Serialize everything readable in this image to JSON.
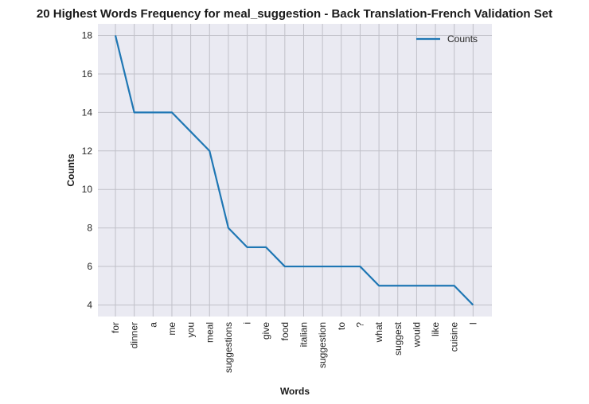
{
  "chart_data": {
    "type": "line",
    "title": "20 Highest Words Frequency for meal_suggestion - Back Translation-French Validation Set",
    "xlabel": "Words",
    "ylabel": "Counts",
    "categories": [
      "for",
      "dinner",
      "a",
      "me",
      "you",
      "meal",
      "suggestions",
      "i",
      "give",
      "food",
      "italian",
      "suggestion",
      "to",
      "?",
      "what",
      "suggest",
      "would",
      "like",
      "cuisine",
      "I"
    ],
    "series": [
      {
        "name": "Counts",
        "values": [
          18,
          14,
          14,
          14,
          13,
          12,
          8,
          7,
          7,
          6,
          6,
          6,
          6,
          6,
          5,
          5,
          5,
          5,
          5,
          4
        ]
      }
    ],
    "ylim": [
      3.4,
      18.6
    ],
    "yticks": [
      4,
      6,
      8,
      10,
      12,
      14,
      16,
      18
    ],
    "grid": true,
    "legend_position": "top-right",
    "colors": {
      "line": "#1f77b4",
      "background": "#eaeaf2",
      "grid": "#c0c0c8"
    }
  }
}
